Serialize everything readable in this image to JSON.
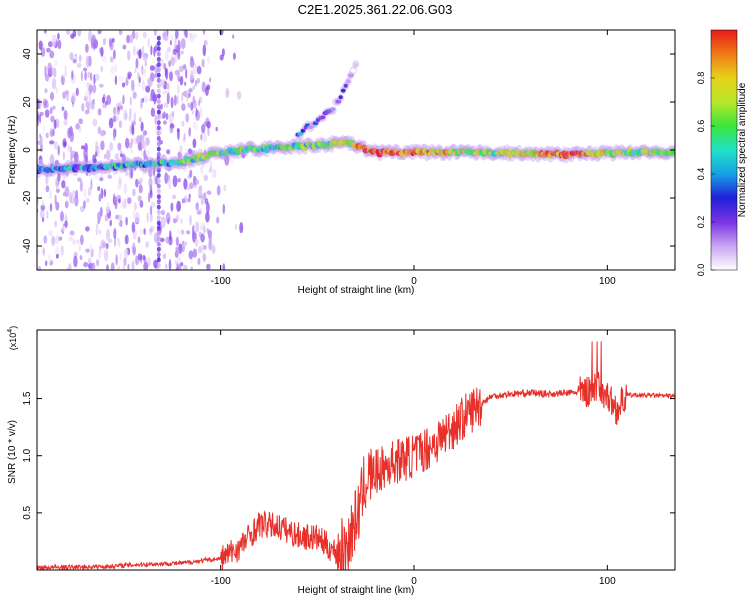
{
  "title": "C2E1.2025.361.22.06.G03",
  "colors": {
    "snr_line": "#e8302a",
    "axis": "#000000",
    "background": "#ffffff"
  },
  "chart_data": [
    {
      "type": "heatmap",
      "xlabel": "Height of straight line (km)",
      "ylabel": "Frequency (Hz)",
      "xlim": [
        -195,
        135
      ],
      "ylim": [
        -50,
        50
      ],
      "xticks": [
        -100,
        0,
        100
      ],
      "yticks": [
        -40,
        -20,
        0,
        20,
        40
      ],
      "colorbar": {
        "label": "Normalized spectral amplitude",
        "range": [
          0,
          1
        ],
        "ticks": [
          "0.0",
          "0.2",
          "0.4",
          "0.6",
          "0.8"
        ],
        "colormap": [
          "#ffffff",
          "#c9a4f2",
          "#7a33e6",
          "#2020d8",
          "#16a0e6",
          "#22e2c8",
          "#3ae63a",
          "#b8e62a",
          "#e6d21a",
          "#f07a16",
          "#e61a1a"
        ]
      },
      "traces": [
        {
          "name": "main Doppler trace",
          "x": [
            -195,
            -160,
            -140,
            -120,
            -105,
            -90,
            -70,
            -50,
            -35,
            -20,
            0,
            40,
            80,
            110,
            135
          ],
          "freq": [
            -8,
            -7,
            -6,
            -5,
            -2,
            0,
            1,
            2,
            3,
            -1,
            -1,
            -1,
            -2,
            -1,
            -1
          ],
          "amplitude": [
            0.35,
            0.4,
            0.45,
            0.5,
            0.65,
            0.55,
            0.5,
            0.55,
            0.7,
            0.9,
            0.9,
            0.6,
            0.95,
            0.6,
            0.6
          ]
        },
        {
          "name": "upper branch",
          "x": [
            -60,
            -50,
            -40,
            -30
          ],
          "freq": [
            7,
            12,
            19,
            35
          ],
          "amplitude": [
            0.3,
            0.25,
            0.2,
            0.1
          ]
        }
      ]
    },
    {
      "type": "line",
      "xlabel": "Height of straight line (km)",
      "ylabel": "SNR (10 * v/v)",
      "y_multiplier": "(x10^4)",
      "y_multiplier_base": "(x10",
      "y_multiplier_exp": "4",
      "y_multiplier_close": ")",
      "xlim": [
        -195,
        135
      ],
      "ylim": [
        0,
        2.1
      ],
      "xticks": [
        -100,
        0,
        100
      ],
      "yticks": [
        0.5,
        1.0,
        1.5
      ],
      "ytick_labels": [
        "0.5",
        "1.0",
        "1.5"
      ],
      "series": [
        {
          "name": "SNR",
          "x": [
            -195,
            -160,
            -140,
            -120,
            -100,
            -90,
            -80,
            -70,
            -60,
            -50,
            -40,
            -35,
            -32,
            -28,
            -25,
            -20,
            -10,
            0,
            10,
            20,
            30,
            40,
            50,
            60,
            70,
            80,
            90,
            95,
            100,
            105,
            110,
            120,
            135
          ],
          "values": [
            0.02,
            0.03,
            0.05,
            0.06,
            0.1,
            0.2,
            0.4,
            0.38,
            0.3,
            0.28,
            0.15,
            0.2,
            0.35,
            0.55,
            0.8,
            0.85,
            0.95,
            1.0,
            1.1,
            1.25,
            1.4,
            1.52,
            1.54,
            1.55,
            1.54,
            1.55,
            1.56,
            1.6,
            1.52,
            1.4,
            1.53,
            1.53,
            1.52
          ]
        }
      ]
    }
  ]
}
